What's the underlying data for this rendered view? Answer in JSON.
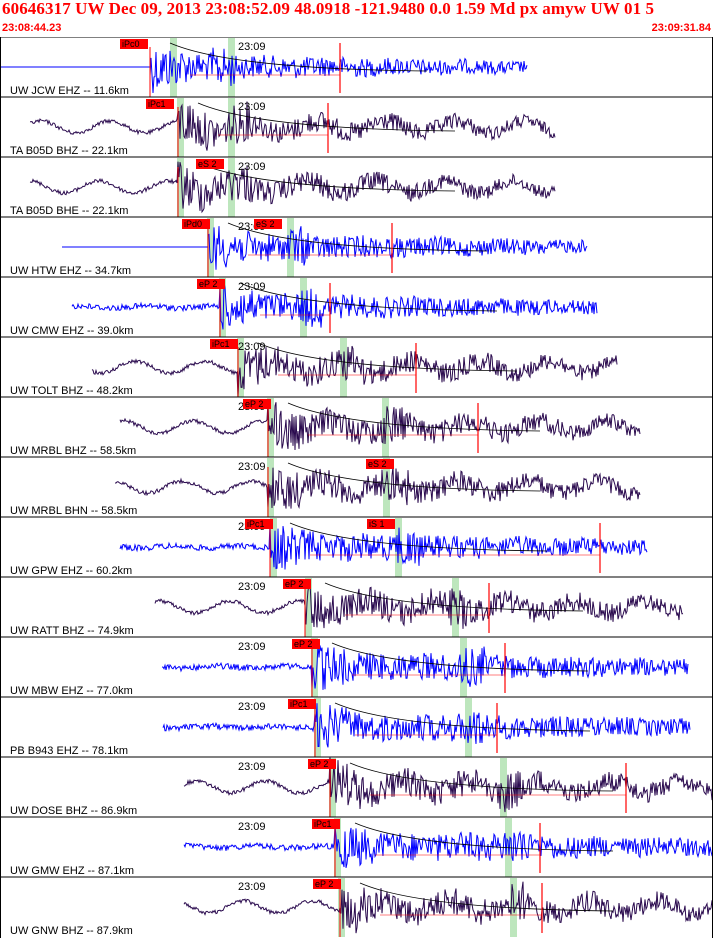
{
  "header": {
    "title": "60646317 UW Dec 09, 2013 23:08:52.09    48.0918 -121.9480  0.0 1.59 Md px amyw UW 01   5",
    "start_time": "23:08:44.23",
    "end_time": "23:09:31.84"
  },
  "colors": {
    "header_text": "#ff0000",
    "trace_blue": "#0000ff",
    "trace_dark": "#2a0a4e",
    "pick_box": "#ff0000",
    "pick_text": "#000000",
    "phase_band": "#bde6bd",
    "curve": "#000000",
    "separator": "#000000"
  },
  "time_tick_label": "23:09",
  "traces": [
    {
      "label": "UW JCW EHZ -- 11.6km",
      "color": "blue",
      "picks": [
        "iPc0"
      ]
    },
    {
      "label": "TA B05D BHZ -- 22.1km",
      "color": "dark",
      "picks": [
        "iPc1"
      ]
    },
    {
      "label": "TA B05D BHE -- 22.1km",
      "color": "dark",
      "picks": [
        "eS 2"
      ]
    },
    {
      "label": "UW HTW EHZ -- 34.7km",
      "color": "blue",
      "picks": [
        "iPd0",
        "eS 2"
      ]
    },
    {
      "label": "UW CMW EHZ -- 39.0km",
      "color": "blue",
      "picks": [
        "eP 2"
      ]
    },
    {
      "label": "UW TOLT BHZ -- 48.2km",
      "color": "dark",
      "picks": [
        "iPc1"
      ]
    },
    {
      "label": "UW MRBL BHZ -- 58.5km",
      "color": "dark",
      "picks": [
        "eP 2"
      ]
    },
    {
      "label": "UW MRBL BHN -- 58.5km",
      "color": "dark",
      "picks": [
        "eS 2"
      ]
    },
    {
      "label": "UW GPW EHZ -- 60.2km",
      "color": "blue",
      "picks": [
        "iPc1",
        "iS 1"
      ]
    },
    {
      "label": "UW RATT BHZ -- 74.9km",
      "color": "dark",
      "picks": [
        "eP 2"
      ]
    },
    {
      "label": "UW MBW EHZ -- 77.0km",
      "color": "blue",
      "picks": [
        "eP 2"
      ]
    },
    {
      "label": "PB B943 EHZ -- 78.1km",
      "color": "blue",
      "picks": [
        "iPc1"
      ]
    },
    {
      "label": "UW DOSE BHZ -- 86.9km",
      "color": "dark",
      "picks": [
        "eP 2"
      ]
    },
    {
      "label": "UW GMW EHZ -- 87.1km",
      "color": "blue",
      "picks": [
        "iPc1"
      ]
    },
    {
      "label": "UW GNW BHZ -- 87.9km",
      "color": "dark",
      "picks": [
        "eP 2"
      ]
    }
  ]
}
